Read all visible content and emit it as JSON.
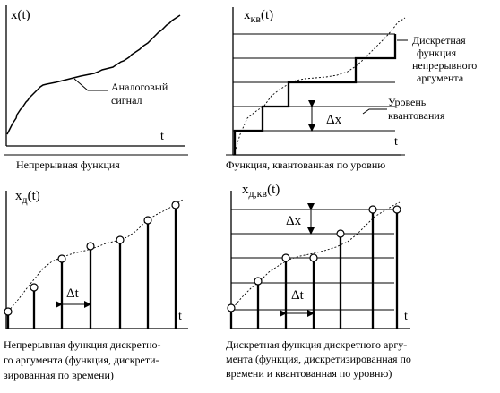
{
  "panels": [
    {
      "y_label": "x(t)",
      "t_label": "t",
      "annotation": [
        "Аналоговый",
        "сигнал"
      ],
      "caption": [
        "Непрерывная функция"
      ]
    },
    {
      "y_label_main": "x",
      "y_label_sub": "кв",
      "y_label_arg": "(t)",
      "t_label": "t",
      "annotation_top": [
        "Дискретная",
        "функция",
        "непрерывного",
        "аргумента"
      ],
      "annotation_bottom": [
        "Уровень",
        "квантования"
      ],
      "delta": "Δx",
      "caption": [
        "Функция, квантованная по уровню"
      ]
    },
    {
      "y_label_main": "x",
      "y_label_sub": "д",
      "y_label_arg": "(t)",
      "t_label": "t",
      "delta": "Δt",
      "caption": [
        "Непрерывная функция дискретно-",
        "го аргумента (функция, дискрети-",
        "зированная по времени)"
      ]
    },
    {
      "y_label_main": "x",
      "y_label_sub": "д,кв",
      "y_label_arg": "(t)",
      "t_label": "t",
      "delta_x": "Δx",
      "delta_t": "Δt",
      "caption": [
        "Дискретная функция дискретного аргу-",
        "мента (функция, дискретизированная по",
        "времени и квантованная по уровню)"
      ]
    }
  ]
}
